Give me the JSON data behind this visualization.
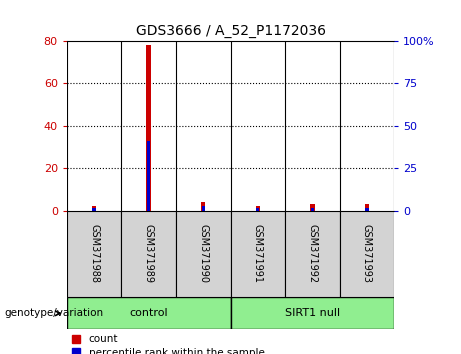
{
  "title": "GDS3666 / A_52_P1172036",
  "samples": [
    "GSM371988",
    "GSM371989",
    "GSM371990",
    "GSM371991",
    "GSM371992",
    "GSM371993"
  ],
  "count_values": [
    2,
    78,
    4,
    2,
    3,
    3
  ],
  "percentile_values": [
    1.5,
    41,
    2.5,
    1.5,
    1.5,
    1.5
  ],
  "ylim_left": [
    0,
    80
  ],
  "ylim_right": [
    0,
    100
  ],
  "yticks_left": [
    0,
    20,
    40,
    60,
    80
  ],
  "yticks_right": [
    0,
    25,
    50,
    75,
    100
  ],
  "ytick_labels_right": [
    "0",
    "25",
    "50",
    "75",
    "100%"
  ],
  "left_tick_color": "#cc0000",
  "right_tick_color": "#0000cc",
  "bar_color_red": "#cc0000",
  "bar_color_blue": "#0000cc",
  "sample_bg_color": "#d3d3d3",
  "group_row_color": "#90ee90",
  "legend_red_label": "count",
  "legend_blue_label": "percentile rank within the sample",
  "genotype_label": "genotype/variation",
  "bar_width": 0.08,
  "blue_bar_width": 0.06,
  "control_label": "control",
  "sirt1_label": "SIRT1 null"
}
